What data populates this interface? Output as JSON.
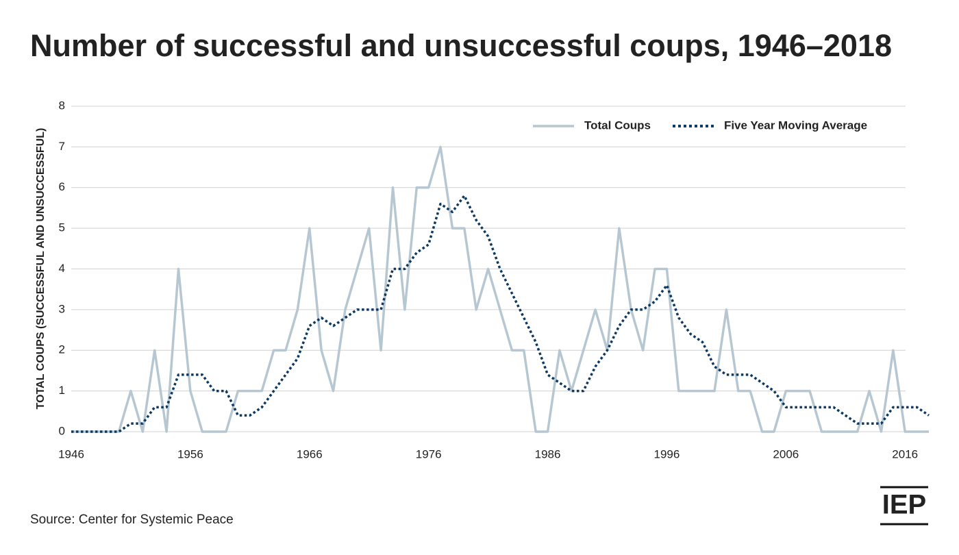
{
  "chart_data": {
    "type": "line",
    "title": "Number of successful and unsuccessful coups, 1946–2018",
    "y_label": "TOTAL COUPS (SUCCESSFUL AND UNSUCCESSFUL)",
    "source": "Source: Center for Systemic Peace",
    "logo": "IEP",
    "x": [
      1946,
      1947,
      1948,
      1949,
      1950,
      1951,
      1952,
      1953,
      1954,
      1955,
      1956,
      1957,
      1958,
      1959,
      1960,
      1961,
      1962,
      1963,
      1964,
      1965,
      1966,
      1967,
      1968,
      1969,
      1970,
      1971,
      1972,
      1973,
      1974,
      1975,
      1976,
      1977,
      1978,
      1979,
      1980,
      1981,
      1982,
      1983,
      1984,
      1985,
      1986,
      1987,
      1988,
      1989,
      1990,
      1991,
      1992,
      1993,
      1994,
      1995,
      1996,
      1997,
      1998,
      1999,
      2000,
      2001,
      2002,
      2003,
      2004,
      2005,
      2006,
      2007,
      2008,
      2009,
      2010,
      2011,
      2012,
      2013,
      2014,
      2015,
      2016,
      2017,
      2018
    ],
    "series": [
      {
        "name": "Total Coups",
        "color": "#b7c7d1",
        "dash": false,
        "values": [
          0,
          0,
          0,
          0,
          0,
          1,
          0,
          2,
          0,
          4,
          1,
          0,
          0,
          0,
          1,
          1,
          1,
          2,
          2,
          3,
          5,
          2,
          1,
          3,
          4,
          5,
          2,
          6,
          3,
          6,
          6,
          7,
          5,
          5,
          3,
          4,
          3,
          2,
          2,
          0,
          0,
          2,
          1,
          2,
          3,
          2,
          5,
          3,
          2,
          4,
          4,
          1,
          1,
          1,
          1,
          3,
          1,
          1,
          0,
          0,
          1,
          1,
          1,
          0,
          0,
          0,
          0,
          1,
          0,
          2,
          0,
          0,
          0
        ]
      },
      {
        "name": "Five Year Moving Average",
        "color": "#0d3a63",
        "dash": true,
        "values": [
          0,
          0,
          0,
          0,
          0,
          0.2,
          0.2,
          0.6,
          0.6,
          1.4,
          1.4,
          1.4,
          1.0,
          1.0,
          0.4,
          0.4,
          0.6,
          1.0,
          1.4,
          1.8,
          2.6,
          2.8,
          2.6,
          2.8,
          3.0,
          3.0,
          3.0,
          4.0,
          4.0,
          4.4,
          4.6,
          5.6,
          5.4,
          5.8,
          5.2,
          4.8,
          4.0,
          3.4,
          2.8,
          2.2,
          1.4,
          1.2,
          1.0,
          1.0,
          1.6,
          2.0,
          2.6,
          3.0,
          3.0,
          3.2,
          3.6,
          2.8,
          2.4,
          2.2,
          1.6,
          1.4,
          1.4,
          1.4,
          1.2,
          1.0,
          0.6,
          0.6,
          0.6,
          0.6,
          0.6,
          0.4,
          0.2,
          0.2,
          0.2,
          0.6,
          0.6,
          0.6,
          0.4
        ]
      }
    ],
    "xlim": [
      1946,
      2018
    ],
    "xticks": [
      1946,
      1956,
      1966,
      1976,
      1986,
      1996,
      2006,
      2016
    ],
    "ylim": [
      0,
      8
    ],
    "yticks": [
      0,
      1,
      2,
      3,
      4,
      5,
      6,
      7,
      8
    ],
    "grid": true,
    "legend": "top-right"
  }
}
